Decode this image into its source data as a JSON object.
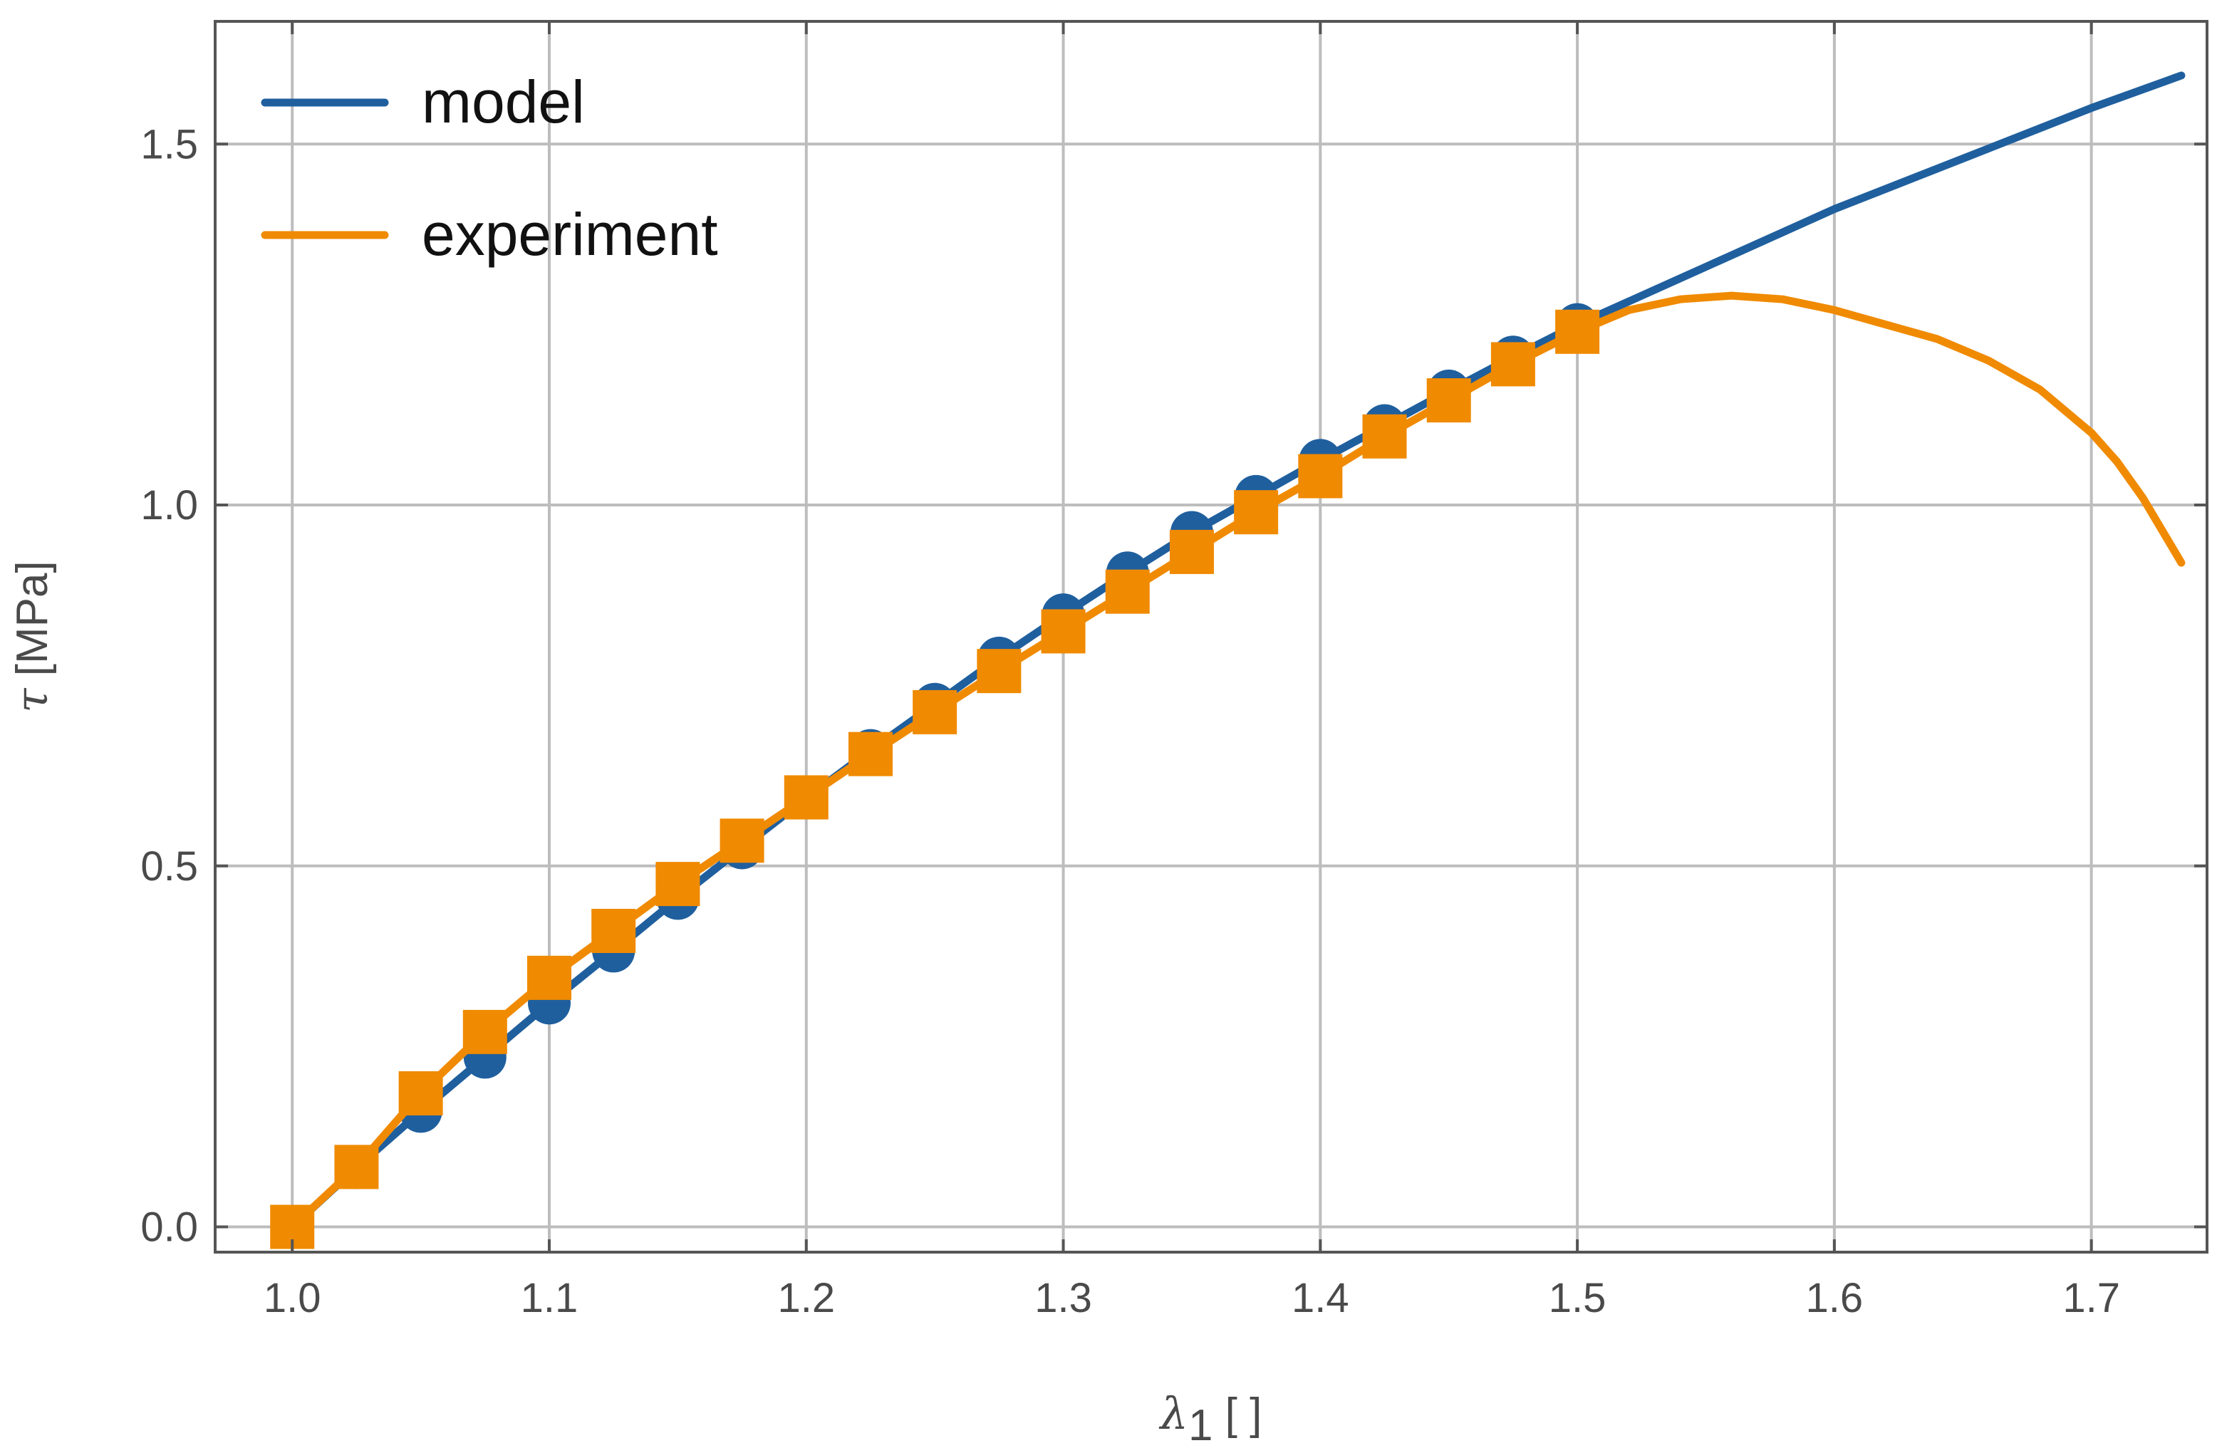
{
  "chart_data": {
    "type": "line",
    "title": "",
    "xlabel": {
      "symbol": "λ",
      "subscript": "1",
      "unit": " [ ]"
    },
    "ylabel": {
      "symbol": "τ",
      "unit": " [MPa]"
    },
    "xlim": [
      0.97,
      1.745
    ],
    "ylim": [
      -0.035,
      1.67
    ],
    "x_ticks": [
      1.0,
      1.1,
      1.2,
      1.3,
      1.4,
      1.5,
      1.6,
      1.7
    ],
    "x_tick_labels": [
      "1.0",
      "1.1",
      "1.2",
      "1.3",
      "1.4",
      "1.5",
      "1.6",
      "1.7"
    ],
    "y_ticks": [
      0.0,
      0.5,
      1.0,
      1.5
    ],
    "y_tick_labels": [
      "0.0",
      "0.5",
      "1.0",
      "1.5"
    ],
    "grid": true,
    "legend_position": "top-left",
    "series": [
      {
        "name": "model",
        "color": "#1f5f9e",
        "marker": "circle",
        "x": [
          1.0,
          1.025,
          1.05,
          1.075,
          1.1,
          1.125,
          1.15,
          1.175,
          1.2,
          1.225,
          1.25,
          1.275,
          1.3,
          1.325,
          1.35,
          1.375,
          1.4,
          1.425,
          1.45,
          1.475,
          1.5,
          1.55,
          1.6,
          1.65,
          1.7,
          1.735
        ],
        "y": [
          0.0,
          0.082,
          0.16,
          0.235,
          0.31,
          0.382,
          0.455,
          0.525,
          0.594,
          0.66,
          0.724,
          0.788,
          0.848,
          0.906,
          0.962,
          1.012,
          1.062,
          1.11,
          1.158,
          1.205,
          1.25,
          1.33,
          1.41,
          1.48,
          1.55,
          1.595
        ],
        "marker_x": [
          1.0,
          1.025,
          1.05,
          1.075,
          1.1,
          1.125,
          1.15,
          1.175,
          1.2,
          1.225,
          1.25,
          1.275,
          1.3,
          1.325,
          1.35,
          1.375,
          1.4,
          1.425,
          1.45,
          1.475,
          1.5
        ]
      },
      {
        "name": "experiment",
        "color": "#f08a00",
        "marker": "square",
        "x": [
          1.0,
          1.025,
          1.05,
          1.075,
          1.1,
          1.125,
          1.15,
          1.175,
          1.2,
          1.225,
          1.25,
          1.275,
          1.3,
          1.325,
          1.35,
          1.375,
          1.4,
          1.425,
          1.45,
          1.475,
          1.5,
          1.52,
          1.54,
          1.56,
          1.58,
          1.6,
          1.62,
          1.64,
          1.66,
          1.68,
          1.7,
          1.71,
          1.72,
          1.73,
          1.735
        ],
        "y": [
          0.0,
          0.083,
          0.185,
          0.27,
          0.345,
          0.41,
          0.475,
          0.535,
          0.595,
          0.655,
          0.713,
          0.77,
          0.825,
          0.88,
          0.935,
          0.99,
          1.04,
          1.095,
          1.145,
          1.195,
          1.24,
          1.27,
          1.285,
          1.29,
          1.285,
          1.27,
          1.25,
          1.23,
          1.2,
          1.16,
          1.1,
          1.06,
          1.01,
          0.95,
          0.92
        ],
        "marker_x": [
          1.0,
          1.025,
          1.05,
          1.075,
          1.1,
          1.125,
          1.15,
          1.175,
          1.2,
          1.225,
          1.25,
          1.275,
          1.3,
          1.325,
          1.35,
          1.375,
          1.4,
          1.425,
          1.45,
          1.475,
          1.5
        ]
      }
    ]
  }
}
